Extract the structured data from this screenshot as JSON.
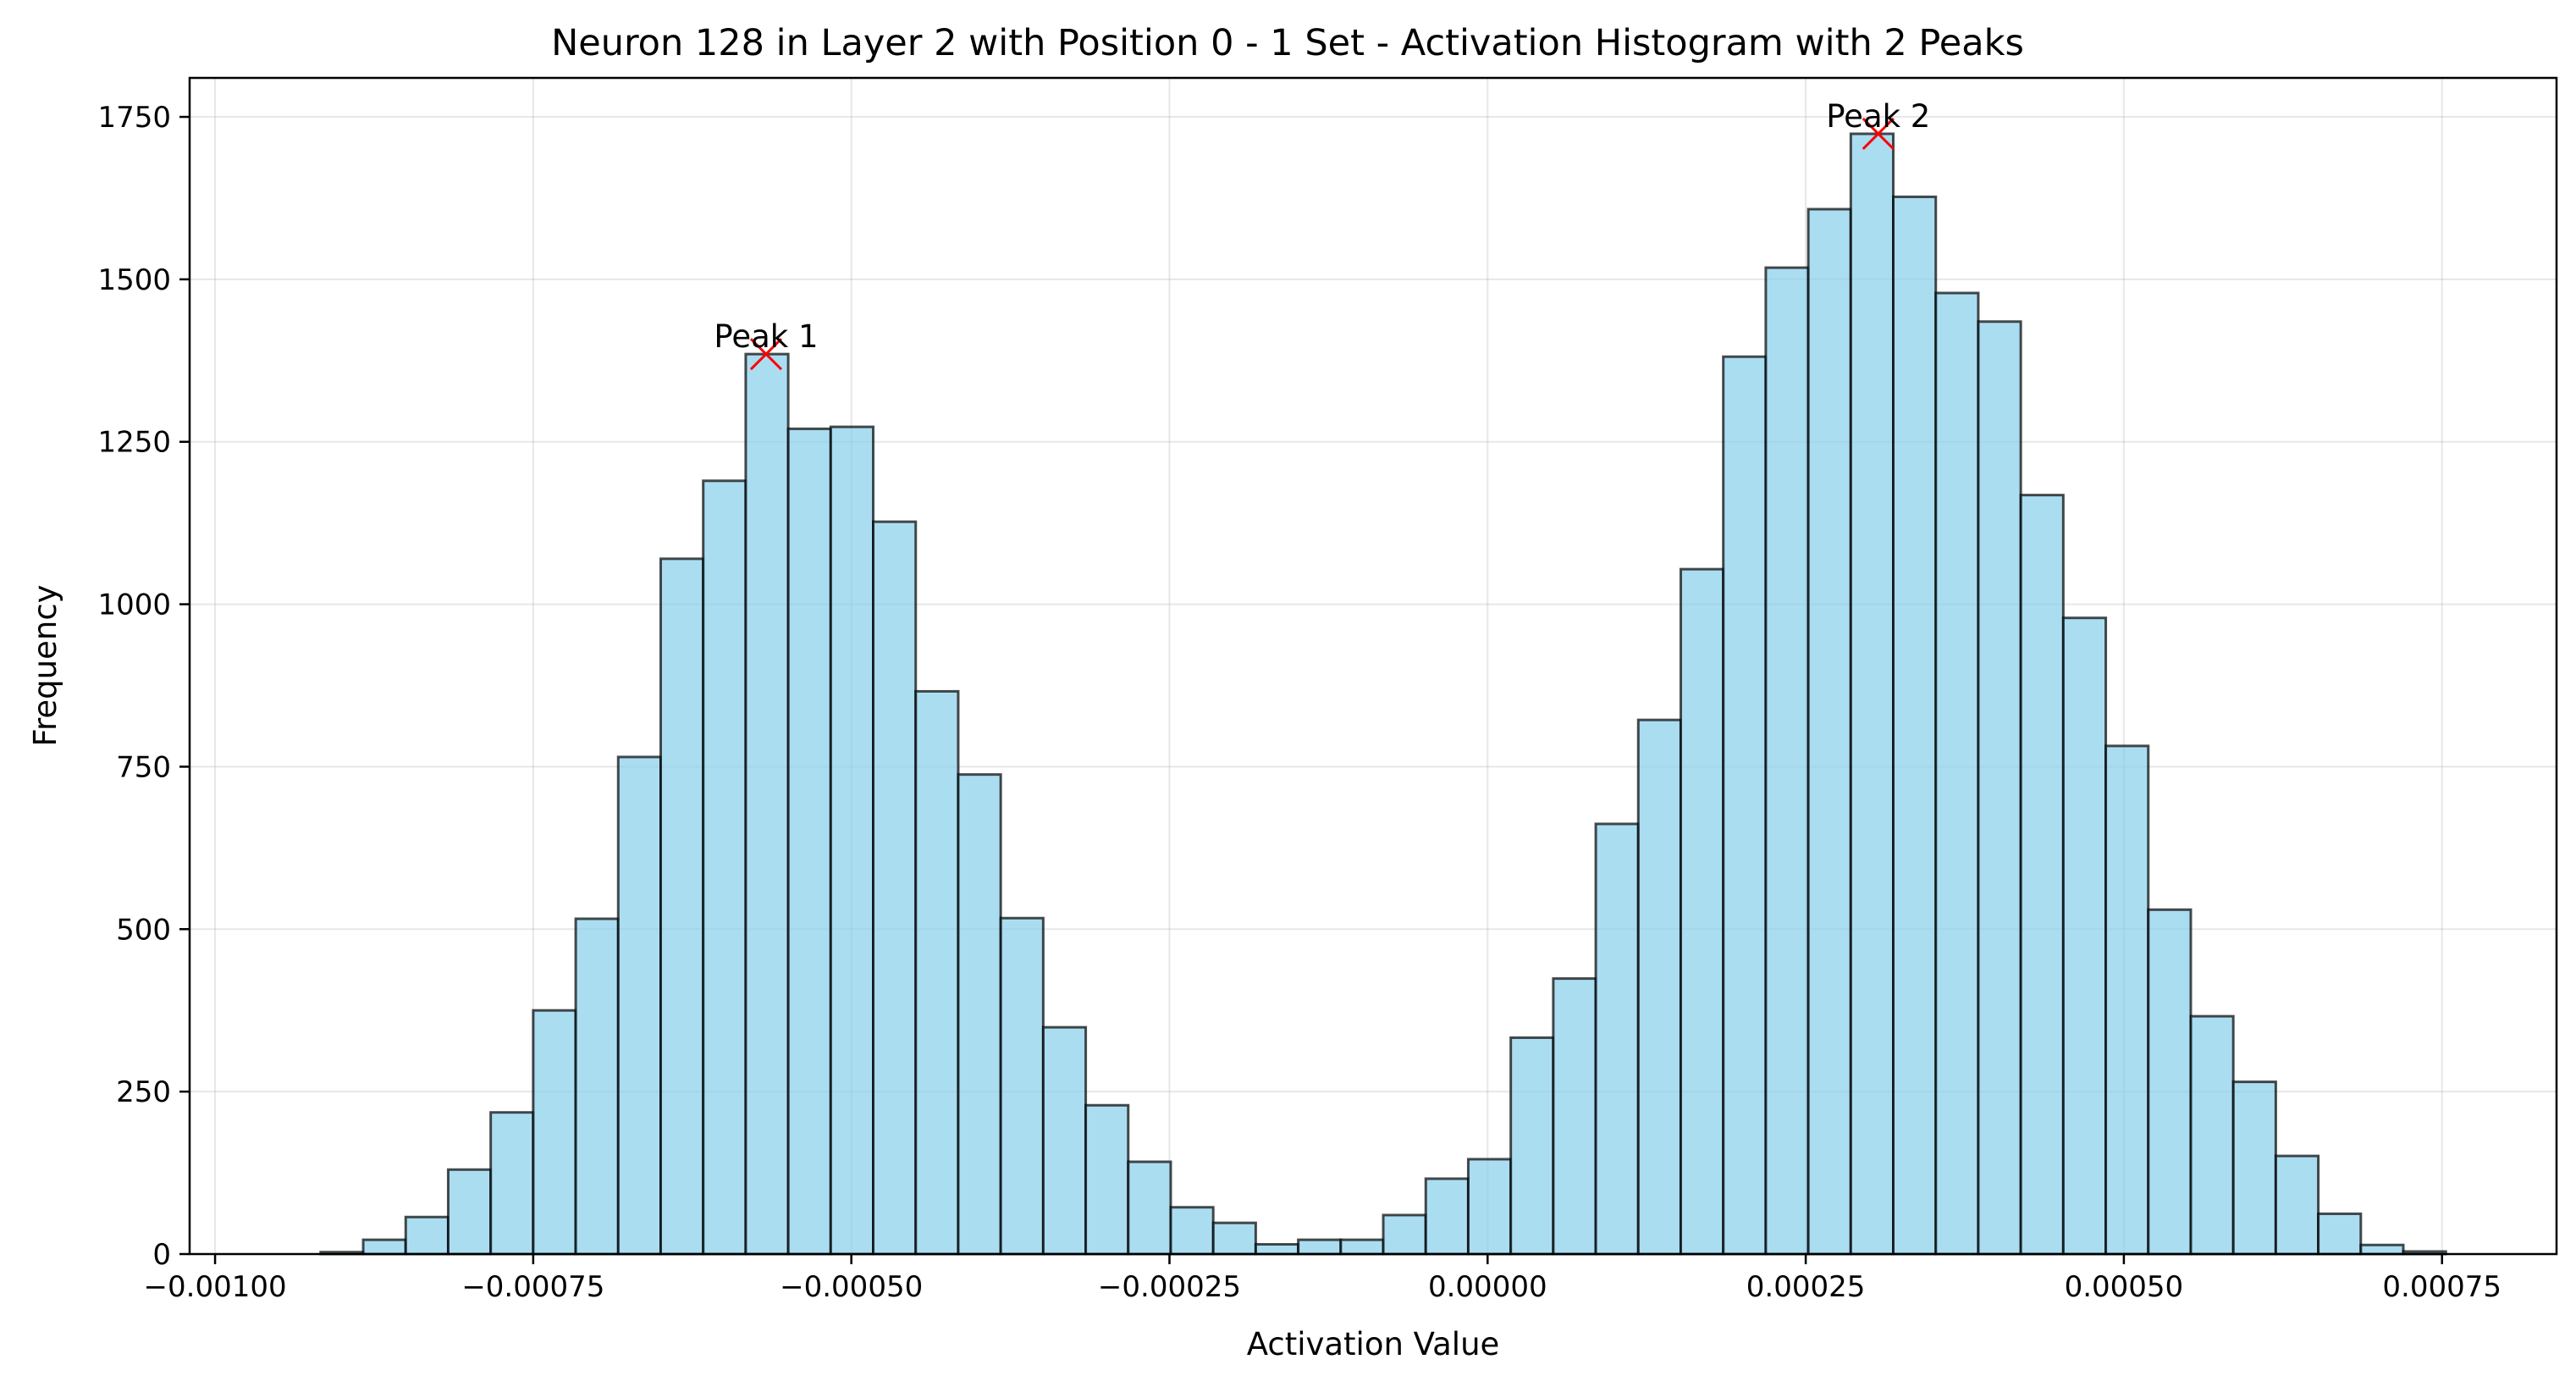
{
  "chart_data": {
    "type": "bar",
    "title": "Neuron 128 in Layer 2 with Position 0 - 1 Set - Activation Histogram with 2 Peaks",
    "xlabel": "Activation Value",
    "ylabel": "Frequency",
    "xlim": [
      -0.00102,
      0.00084
    ],
    "ylim": [
      0,
      1810
    ],
    "x_ticks": [
      -0.001,
      -0.00075,
      -0.0005,
      -0.00025,
      0.0,
      0.00025,
      0.0005,
      0.00075
    ],
    "x_tick_labels": [
      "−0.00100",
      "−0.00075",
      "−0.00050",
      "−0.00025",
      "0.00000",
      "0.00025",
      "0.00050",
      "0.00075"
    ],
    "y_ticks": [
      0,
      250,
      500,
      750,
      1000,
      1250,
      1500,
      1750
    ],
    "y_tick_labels": [
      "0",
      "250",
      "500",
      "750",
      "1000",
      "1250",
      "1500",
      "1750"
    ],
    "grid": true,
    "bins_start": -0.000917,
    "bin_width": 3.34e-05,
    "values": [
      3,
      22,
      57,
      130,
      218,
      375,
      516,
      765,
      1070,
      1190,
      1385,
      1270,
      1273,
      1127,
      866,
      738,
      517,
      349,
      229,
      142,
      72,
      48,
      15,
      22,
      22,
      60,
      116,
      146,
      333,
      424,
      662,
      822,
      1054,
      1381,
      1518,
      1608,
      1724,
      1627,
      1479,
      1435,
      1168,
      979,
      782,
      530,
      366,
      265,
      151,
      62,
      14,
      4
    ],
    "bar_color": "#87CEEB",
    "edge_color": "#000000",
    "peaks": [
      {
        "label": "Peak 1",
        "x": -0.000567,
        "y": 1385
      },
      {
        "label": "Peak 2",
        "x": 0.000307,
        "y": 1724
      }
    ],
    "peak_marker_color": "#FF0000"
  }
}
